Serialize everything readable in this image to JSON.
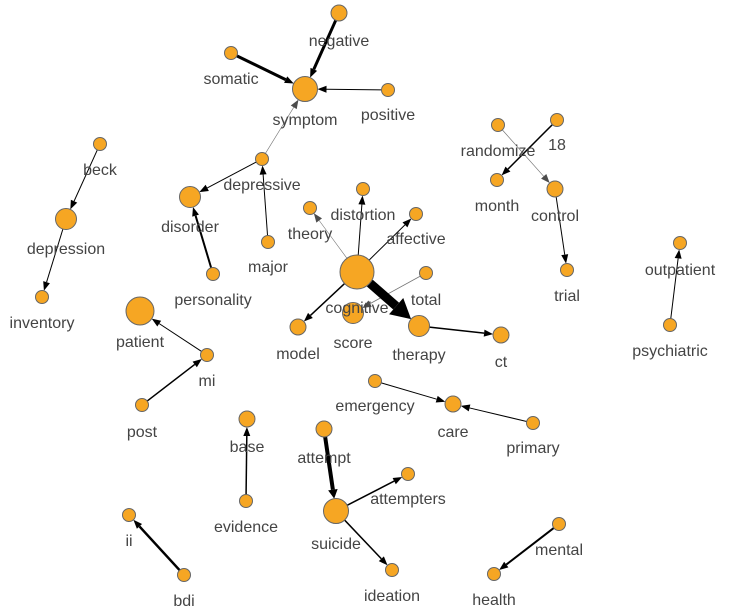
{
  "colors": {
    "node_fill": "#f6a623",
    "node_stroke": "#666666",
    "edge": "#000000",
    "label": "#444444"
  },
  "nodes": [
    {
      "id": "negative",
      "size": 2
    },
    {
      "id": "somatic",
      "size": 1
    },
    {
      "id": "symptom",
      "size": 4
    },
    {
      "id": "positive",
      "size": 1
    },
    {
      "id": "beck",
      "size": 1
    },
    {
      "id": "depression",
      "size": 3
    },
    {
      "id": "inventory",
      "size": 1
    },
    {
      "id": "depressive",
      "size": 1
    },
    {
      "id": "disorder",
      "size": 3
    },
    {
      "id": "major",
      "size": 1
    },
    {
      "id": "personality",
      "size": 1
    },
    {
      "id": "patient",
      "size": 5
    },
    {
      "id": "mi",
      "size": 1
    },
    {
      "id": "post",
      "size": 1
    },
    {
      "id": "randomize",
      "size": 1
    },
    {
      "id": "18",
      "size": 1
    },
    {
      "id": "month",
      "size": 1
    },
    {
      "id": "control",
      "size": 2
    },
    {
      "id": "trial",
      "size": 1
    },
    {
      "id": "distortion",
      "size": 1
    },
    {
      "id": "theory",
      "size": 1
    },
    {
      "id": "affective",
      "size": 1
    },
    {
      "id": "cognitive",
      "size": 6
    },
    {
      "id": "total",
      "size": 1
    },
    {
      "id": "score",
      "size": 3
    },
    {
      "id": "model",
      "size": 2
    },
    {
      "id": "therapy",
      "size": 3
    },
    {
      "id": "ct",
      "size": 2
    },
    {
      "id": "outpatient",
      "size": 1
    },
    {
      "id": "psychiatric",
      "size": 1
    },
    {
      "id": "emergency",
      "size": 1
    },
    {
      "id": "care",
      "size": 2
    },
    {
      "id": "primary",
      "size": 1
    },
    {
      "id": "base",
      "size": 2
    },
    {
      "id": "attempt",
      "size": 2
    },
    {
      "id": "attempters",
      "size": 1
    },
    {
      "id": "evidence",
      "size": 1
    },
    {
      "id": "suicide",
      "size": 4
    },
    {
      "id": "ideation",
      "size": 1
    },
    {
      "id": "ii",
      "size": 1
    },
    {
      "id": "bdi",
      "size": 1
    },
    {
      "id": "mental",
      "size": 1
    },
    {
      "id": "health",
      "size": 1
    }
  ],
  "edges": [
    {
      "from": "negative",
      "to": "symptom",
      "weight": 3
    },
    {
      "from": "somatic",
      "to": "symptom",
      "weight": 3
    },
    {
      "from": "positive",
      "to": "symptom",
      "weight": 1
    },
    {
      "from": "depressive",
      "to": "symptom",
      "weight": 0.5
    },
    {
      "from": "depressive",
      "to": "disorder",
      "weight": 1
    },
    {
      "from": "major",
      "to": "depressive",
      "weight": 1
    },
    {
      "from": "personality",
      "to": "disorder",
      "weight": 2
    },
    {
      "from": "beck",
      "to": "depression",
      "weight": 1
    },
    {
      "from": "depression",
      "to": "inventory",
      "weight": 1
    },
    {
      "from": "mi",
      "to": "patient",
      "weight": 1
    },
    {
      "from": "post",
      "to": "mi",
      "weight": 1.5
    },
    {
      "from": "randomize",
      "to": "control",
      "weight": 0.7
    },
    {
      "from": "18",
      "to": "month",
      "weight": 1.5
    },
    {
      "from": "control",
      "to": "trial",
      "weight": 1
    },
    {
      "from": "cognitive",
      "to": "distortion",
      "weight": 1
    },
    {
      "from": "cognitive",
      "to": "theory",
      "weight": 0.6
    },
    {
      "from": "cognitive",
      "to": "affective",
      "weight": 1
    },
    {
      "from": "cognitive",
      "to": "model",
      "weight": 1.5
    },
    {
      "from": "cognitive",
      "to": "therapy",
      "weight": 9
    },
    {
      "from": "total",
      "to": "score",
      "weight": 0.8
    },
    {
      "from": "therapy",
      "to": "ct",
      "weight": 1.5
    },
    {
      "from": "psychiatric",
      "to": "outpatient",
      "weight": 1
    },
    {
      "from": "emergency",
      "to": "care",
      "weight": 1
    },
    {
      "from": "primary",
      "to": "care",
      "weight": 1
    },
    {
      "from": "evidence",
      "to": "base",
      "weight": 1.5
    },
    {
      "from": "attempt",
      "to": "suicide",
      "weight": 4
    },
    {
      "from": "suicide",
      "to": "attempters",
      "weight": 1.5
    },
    {
      "from": "suicide",
      "to": "ideation",
      "weight": 1.5
    },
    {
      "from": "bdi",
      "to": "ii",
      "weight": 2.5
    },
    {
      "from": "mental",
      "to": "health",
      "weight": 2
    }
  ]
}
